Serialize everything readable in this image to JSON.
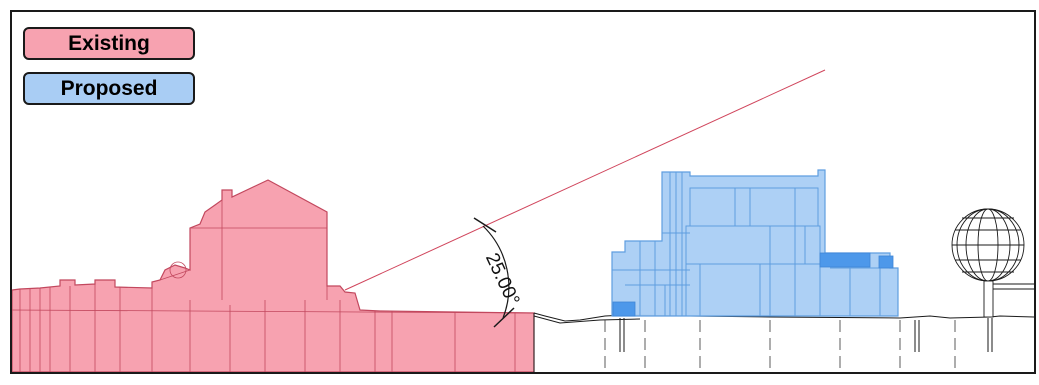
{
  "legend": {
    "existing_label": "Existing",
    "proposed_label": "Proposed"
  },
  "angle_label": "25.00°",
  "colors": {
    "existing_fill": "#f7a2b0",
    "existing_stroke": "#c2485e",
    "proposed_fill": "#a9cdf4",
    "proposed_stroke": "#5f9ee0",
    "proposed_accent": "#4d98ea",
    "sightline": "#d0455c",
    "line": "#1a1a1a"
  }
}
